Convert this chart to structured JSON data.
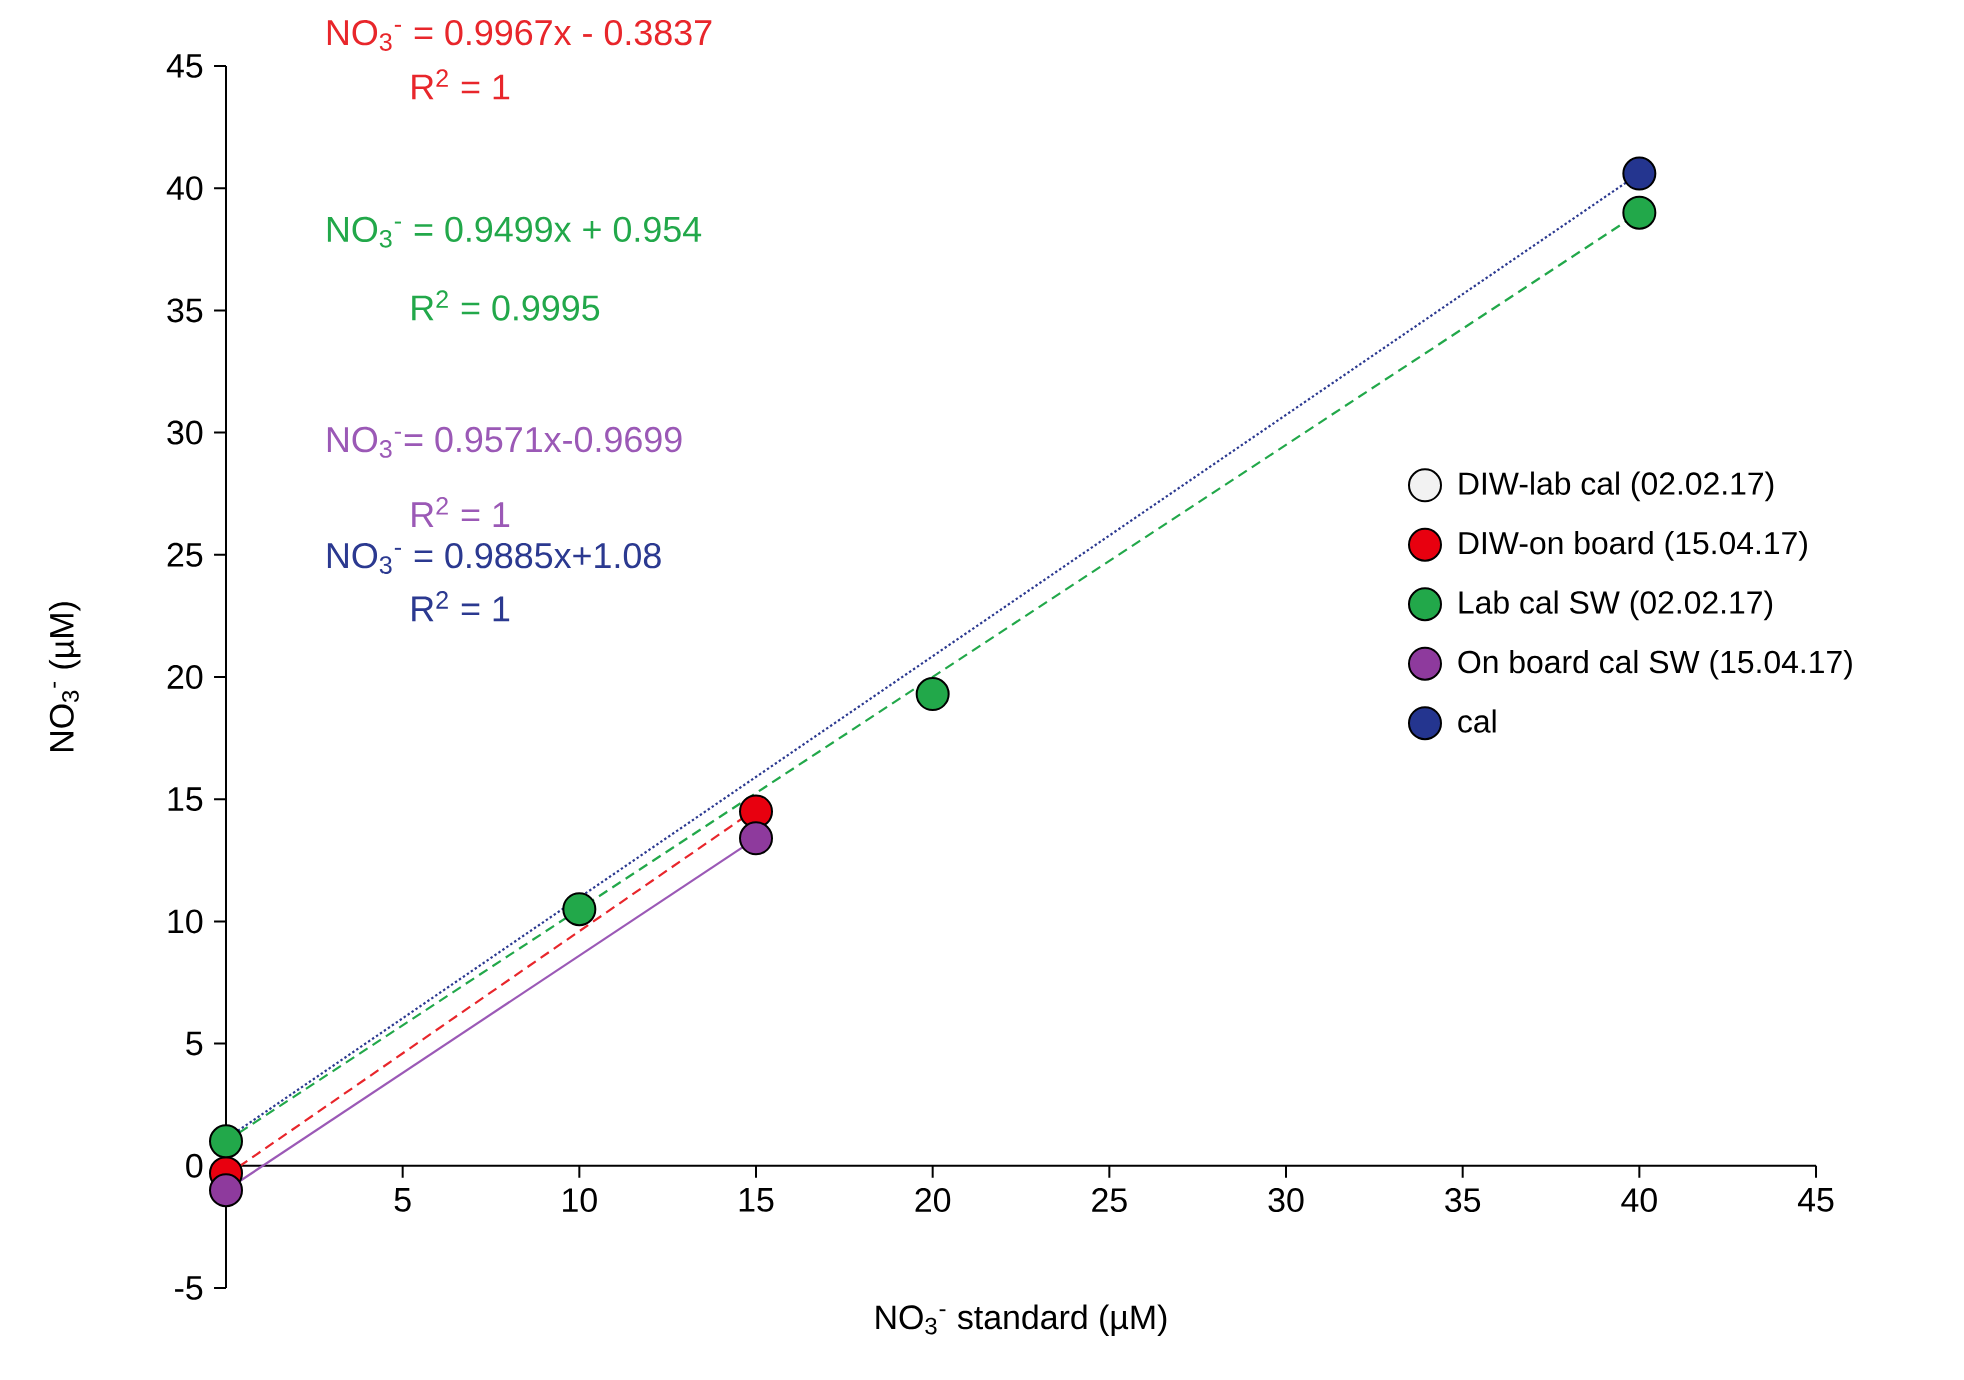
{
  "chart_data": {
    "type": "scatter",
    "xlabel": "NO$_{3}$$^{-}$ standard (µM)",
    "ylabel": "NO$_{3}$$^{-}$ (µM)",
    "xlim": [
      0,
      45
    ],
    "ylim": [
      -5,
      45
    ],
    "xticks": [
      5,
      10,
      15,
      20,
      25,
      30,
      35,
      40,
      45
    ],
    "yticks": [
      -5,
      0,
      5,
      10,
      15,
      20,
      25,
      30,
      35,
      40,
      45
    ],
    "legend": "right",
    "marker": "circle",
    "grid": false,
    "annotations": [
      "NO$_{3}$$^{-}$ = 0.9967x - 0.3837",
      "R$^{2}$ = 1",
      "NO$_{3}$$^{-}$ = 0.9499x + 0.954",
      "R$^{2}$ = 0.9995",
      "NO$_{3}$$^{-}$= 0.9571x-0.9699",
      "R$^{2}$ = 1",
      "NO$_{3}$$^{-}$ = 0.9885x+1.08",
      "R$^{2}$ = 1"
    ],
    "series": [
      {
        "type": "line",
        "marker": "none",
        "line_style": "dashed",
        "color": "#e8262b",
        "x": [
          0,
          15
        ],
        "values": [
          -0.4,
          14.6
        ]
      },
      {
        "type": "line",
        "marker": "none",
        "line_style": "dashed",
        "color": "#22a84a",
        "x": [
          0,
          40
        ],
        "values": [
          1.0,
          39.0
        ]
      },
      {
        "type": "line",
        "marker": "none",
        "line_style": "solid",
        "color": "#9b59b6",
        "x": [
          0,
          15
        ],
        "values": [
          -1.0,
          13.4
        ]
      },
      {
        "type": "line",
        "marker": "none",
        "line_style": "dotted",
        "color": "#2b3990",
        "x": [
          0,
          40
        ],
        "values": [
          1.1,
          40.6
        ]
      },
      {
        "name": "DIW-lab cal (02.02.17)",
        "color": "#f2f2f2"
      },
      {
        "name": "DIW-on board (15.04.17)",
        "color": "#e8000f",
        "x": [
          0,
          15
        ],
        "values": [
          -0.3,
          14.5
        ]
      },
      {
        "name": "Lab cal SW (02.02.17)",
        "color": "#22a84a",
        "x": [
          0,
          10,
          20,
          40
        ],
        "values": [
          1.0,
          10.5,
          19.3,
          39.0
        ]
      },
      {
        "name": "On board cal SW (15.04.17)",
        "color": "#8e3a9d",
        "x": [
          0,
          15
        ],
        "values": [
          -1.0,
          13.4
        ]
      },
      {
        "name": "cal",
        "color": "#24358f",
        "x": [
          40
        ],
        "values": [
          40.6
        ]
      }
    ]
  }
}
